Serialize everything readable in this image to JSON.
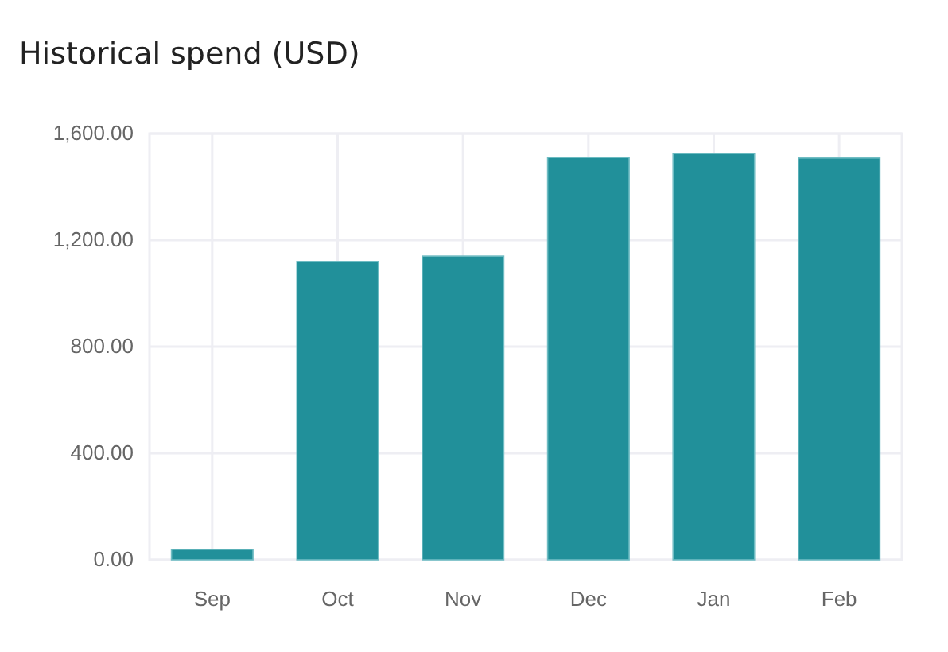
{
  "chart_data": {
    "type": "bar",
    "title": "Historical spend (USD)",
    "categories": [
      "Sep",
      "Oct",
      "Nov",
      "Dec",
      "Jan",
      "Feb"
    ],
    "values": [
      39,
      1120,
      1140,
      1510,
      1525,
      1508
    ],
    "color": "#21909a",
    "ylim": [
      0,
      1600
    ],
    "yticks": [
      {
        "value": 0,
        "label": "0.00"
      },
      {
        "value": 400,
        "label": "400.00"
      },
      {
        "value": 800,
        "label": "800.00"
      },
      {
        "value": 1200,
        "label": "1,200.00"
      },
      {
        "value": 1600,
        "label": "1,600.00"
      }
    ],
    "grid": true
  }
}
